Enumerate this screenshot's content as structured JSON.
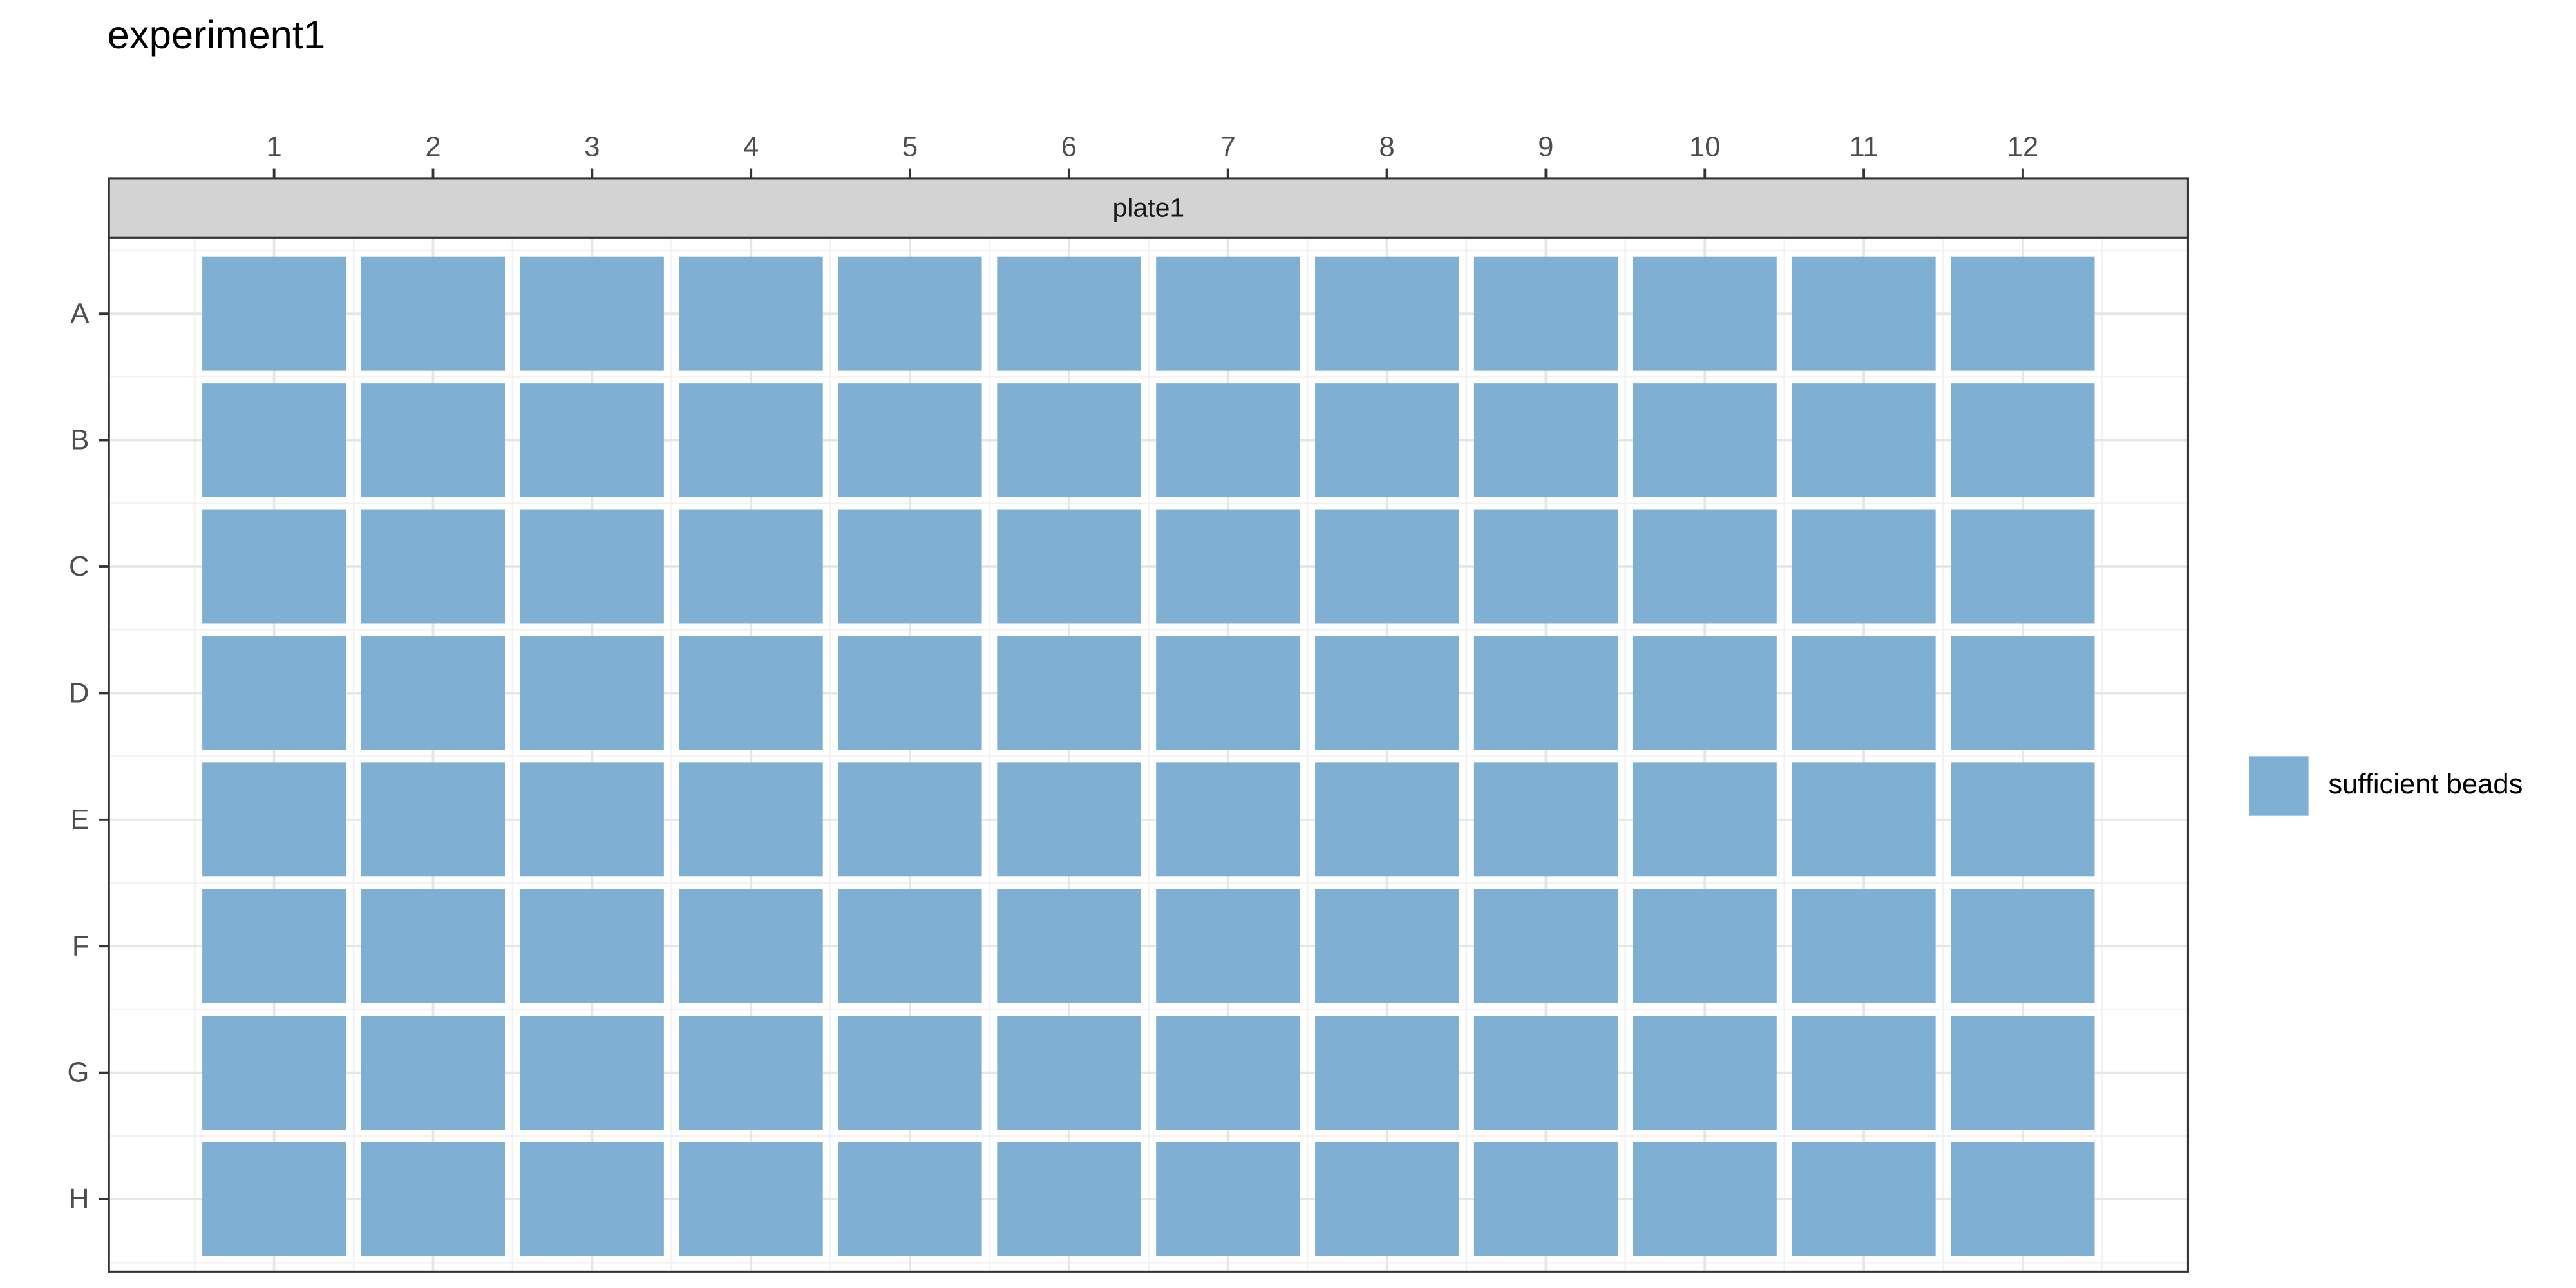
{
  "chart_data": {
    "type": "tile",
    "title": "experiment1",
    "facet": "plate1",
    "x_categories": [
      "1",
      "2",
      "3",
      "4",
      "5",
      "6",
      "7",
      "8",
      "9",
      "10",
      "11",
      "12"
    ],
    "y_categories": [
      "A",
      "B",
      "C",
      "D",
      "E",
      "F",
      "G",
      "H"
    ],
    "legend": [
      {
        "name": "sufficient beads",
        "color": "#7fb0d3"
      }
    ],
    "cells": [
      [
        "sufficient beads",
        "sufficient beads",
        "sufficient beads",
        "sufficient beads",
        "sufficient beads",
        "sufficient beads",
        "sufficient beads",
        "sufficient beads",
        "sufficient beads",
        "sufficient beads",
        "sufficient beads",
        "sufficient beads"
      ],
      [
        "sufficient beads",
        "sufficient beads",
        "sufficient beads",
        "sufficient beads",
        "sufficient beads",
        "sufficient beads",
        "sufficient beads",
        "sufficient beads",
        "sufficient beads",
        "sufficient beads",
        "sufficient beads",
        "sufficient beads"
      ],
      [
        "sufficient beads",
        "sufficient beads",
        "sufficient beads",
        "sufficient beads",
        "sufficient beads",
        "sufficient beads",
        "sufficient beads",
        "sufficient beads",
        "sufficient beads",
        "sufficient beads",
        "sufficient beads",
        "sufficient beads"
      ],
      [
        "sufficient beads",
        "sufficient beads",
        "sufficient beads",
        "sufficient beads",
        "sufficient beads",
        "sufficient beads",
        "sufficient beads",
        "sufficient beads",
        "sufficient beads",
        "sufficient beads",
        "sufficient beads",
        "sufficient beads"
      ],
      [
        "sufficient beads",
        "sufficient beads",
        "sufficient beads",
        "sufficient beads",
        "sufficient beads",
        "sufficient beads",
        "sufficient beads",
        "sufficient beads",
        "sufficient beads",
        "sufficient beads",
        "sufficient beads",
        "sufficient beads"
      ],
      [
        "sufficient beads",
        "sufficient beads",
        "sufficient beads",
        "sufficient beads",
        "sufficient beads",
        "sufficient beads",
        "sufficient beads",
        "sufficient beads",
        "sufficient beads",
        "sufficient beads",
        "sufficient beads",
        "sufficient beads"
      ],
      [
        "sufficient beads",
        "sufficient beads",
        "sufficient beads",
        "sufficient beads",
        "sufficient beads",
        "sufficient beads",
        "sufficient beads",
        "sufficient beads",
        "sufficient beads",
        "sufficient beads",
        "sufficient beads",
        "sufficient beads"
      ],
      [
        "sufficient beads",
        "sufficient beads",
        "sufficient beads",
        "sufficient beads",
        "sufficient beads",
        "sufficient beads",
        "sufficient beads",
        "sufficient beads",
        "sufficient beads",
        "sufficient beads",
        "sufficient beads",
        "sufficient beads"
      ]
    ],
    "grid": true,
    "legend_position": "right"
  }
}
